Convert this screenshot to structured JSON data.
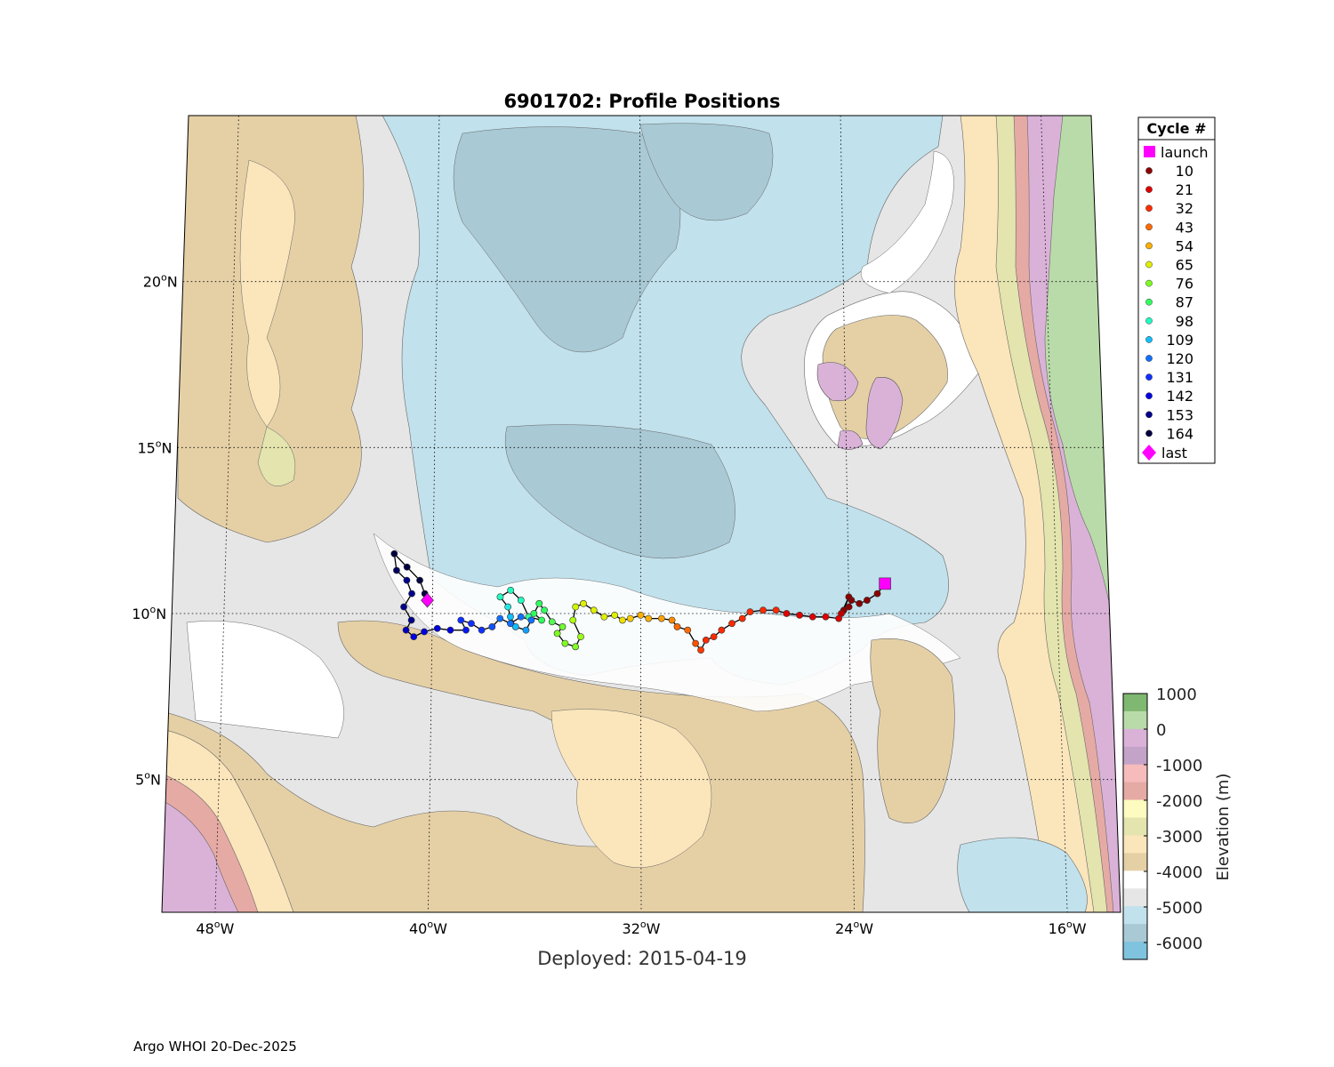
{
  "title": "6901702: Profile Positions",
  "deployed_label": "Deployed: 2015-04-19",
  "footer": "Argo WHOI 20-Dec-2025",
  "map": {
    "lon_range": [
      -50,
      -14
    ],
    "lat_range": [
      1,
      25
    ],
    "lon_ticks": [
      {
        "value": -48,
        "label": "48",
        "hem": "W"
      },
      {
        "value": -40,
        "label": "40",
        "hem": "W"
      },
      {
        "value": -32,
        "label": "32",
        "hem": "W"
      },
      {
        "value": -24,
        "label": "24",
        "hem": "W"
      },
      {
        "value": -16,
        "label": "16",
        "hem": "W"
      }
    ],
    "lat_ticks": [
      {
        "value": 20,
        "label": "20",
        "hem": "N"
      },
      {
        "value": 15,
        "label": "15",
        "hem": "N"
      },
      {
        "value": 10,
        "label": "10",
        "hem": "N"
      },
      {
        "value": 5,
        "label": "5",
        "hem": "N"
      }
    ],
    "grid": "dotted"
  },
  "legend": {
    "header": "Cycle #",
    "placement": "right-top",
    "launch_label": "launch",
    "last_label": "last",
    "launch_color": "#ff00ff",
    "cycles": [
      {
        "label": "10",
        "color": "#8b0000"
      },
      {
        "label": "21",
        "color": "#e00000"
      },
      {
        "label": "32",
        "color": "#ff2a00"
      },
      {
        "label": "43",
        "color": "#ff6a00"
      },
      {
        "label": "54",
        "color": "#ffb000"
      },
      {
        "label": "65",
        "color": "#e0f000"
      },
      {
        "label": "76",
        "color": "#7dff20"
      },
      {
        "label": "87",
        "color": "#30ff60"
      },
      {
        "label": "98",
        "color": "#20ffc0"
      },
      {
        "label": "109",
        "color": "#10c0ff"
      },
      {
        "label": "120",
        "color": "#1070ff"
      },
      {
        "label": "131",
        "color": "#1030ff"
      },
      {
        "label": "142",
        "color": "#0000e0"
      },
      {
        "label": "153",
        "color": "#00008b"
      },
      {
        "label": "164",
        "color": "#000040"
      }
    ]
  },
  "colorbar": {
    "label": "Elevation (m)",
    "ticks": [
      "1000",
      "0",
      "-1000",
      "-2000",
      "-3000",
      "-4000",
      "-5000",
      "-6000"
    ],
    "bands": [
      "#7fb871",
      "#b9dba9",
      "#dab2d8",
      "#c3a3c8",
      "#f6bcbc",
      "#e6aaa4",
      "#fdfbbf",
      "#e3e4ae",
      "#fbe5bb",
      "#e5d0a6",
      "#ffffff",
      "#e6e6e6",
      "#c1e1ec",
      "#a9c9d4",
      "#7fc3de"
    ]
  },
  "chart_data": {
    "type": "scatter",
    "title": "6901702: Profile Positions",
    "xlabel": "",
    "ylabel": "",
    "xlim": [
      -50,
      -14
    ],
    "ylim": [
      1,
      25
    ],
    "launch": {
      "lon": -22.6,
      "lat": 10.9
    },
    "last": {
      "lon": -40.2,
      "lat": 10.4
    },
    "track": [
      {
        "lon": -22.6,
        "lat": 10.9,
        "color": "#8b0000"
      },
      {
        "lon": -22.9,
        "lat": 10.6,
        "color": "#8b0000"
      },
      {
        "lon": -23.3,
        "lat": 10.4,
        "color": "#8b0000"
      },
      {
        "lon": -23.6,
        "lat": 10.3,
        "color": "#8b0000"
      },
      {
        "lon": -23.9,
        "lat": 10.4,
        "color": "#8b0000"
      },
      {
        "lon": -24.0,
        "lat": 10.2,
        "color": "#8b0000"
      },
      {
        "lon": -24.2,
        "lat": 10.1,
        "color": "#8b0000"
      },
      {
        "lon": -24.0,
        "lat": 10.5,
        "color": "#8b0000"
      },
      {
        "lon": -24.3,
        "lat": 10.0,
        "color": "#c00000"
      },
      {
        "lon": -24.4,
        "lat": 9.85,
        "color": "#e00000"
      },
      {
        "lon": -24.9,
        "lat": 9.9,
        "color": "#e00000"
      },
      {
        "lon": -25.4,
        "lat": 9.9,
        "color": "#e00000"
      },
      {
        "lon": -25.9,
        "lat": 9.95,
        "color": "#e00000"
      },
      {
        "lon": -26.4,
        "lat": 10.0,
        "color": "#e00000"
      },
      {
        "lon": -26.8,
        "lat": 10.1,
        "color": "#ff2a00"
      },
      {
        "lon": -27.3,
        "lat": 10.1,
        "color": "#ff2a00"
      },
      {
        "lon": -27.8,
        "lat": 10.05,
        "color": "#ff2a00"
      },
      {
        "lon": -28.1,
        "lat": 9.85,
        "color": "#ff2a00"
      },
      {
        "lon": -28.5,
        "lat": 9.7,
        "color": "#ff2a00"
      },
      {
        "lon": -28.9,
        "lat": 9.5,
        "color": "#ff2a00"
      },
      {
        "lon": -29.2,
        "lat": 9.3,
        "color": "#ff2a00"
      },
      {
        "lon": -29.5,
        "lat": 9.2,
        "color": "#ff2a00"
      },
      {
        "lon": -29.7,
        "lat": 8.9,
        "color": "#ff3a00"
      },
      {
        "lon": -29.9,
        "lat": 9.1,
        "color": "#ff5000"
      },
      {
        "lon": -30.2,
        "lat": 9.5,
        "color": "#ff6a00"
      },
      {
        "lon": -30.6,
        "lat": 9.6,
        "color": "#ff6a00"
      },
      {
        "lon": -30.8,
        "lat": 9.8,
        "color": "#ff8a00"
      },
      {
        "lon": -31.2,
        "lat": 9.85,
        "color": "#ffa000"
      },
      {
        "lon": -31.7,
        "lat": 9.85,
        "color": "#ffb000"
      },
      {
        "lon": -32.0,
        "lat": 9.95,
        "color": "#ffb000"
      },
      {
        "lon": -32.4,
        "lat": 9.85,
        "color": "#ffc800"
      },
      {
        "lon": -32.7,
        "lat": 9.8,
        "color": "#f0e000"
      },
      {
        "lon": -33.0,
        "lat": 9.95,
        "color": "#e0f000"
      },
      {
        "lon": -33.4,
        "lat": 9.9,
        "color": "#e0f000"
      },
      {
        "lon": -33.8,
        "lat": 10.1,
        "color": "#e0f000"
      },
      {
        "lon": -34.2,
        "lat": 10.3,
        "color": "#e0f000"
      },
      {
        "lon": -34.5,
        "lat": 10.2,
        "color": "#d0f800"
      },
      {
        "lon": -34.6,
        "lat": 9.8,
        "color": "#b0ff10"
      },
      {
        "lon": -34.3,
        "lat": 9.3,
        "color": "#9bff18"
      },
      {
        "lon": -34.5,
        "lat": 9.0,
        "color": "#7dff20"
      },
      {
        "lon": -34.9,
        "lat": 9.1,
        "color": "#7dff20"
      },
      {
        "lon": -35.2,
        "lat": 9.4,
        "color": "#7dff20"
      },
      {
        "lon": -35.0,
        "lat": 9.6,
        "color": "#70ff30"
      },
      {
        "lon": -35.4,
        "lat": 9.75,
        "color": "#50ff50"
      },
      {
        "lon": -35.7,
        "lat": 10.1,
        "color": "#30ff60"
      },
      {
        "lon": -35.9,
        "lat": 10.3,
        "color": "#30ff60"
      },
      {
        "lon": -36.1,
        "lat": 10.0,
        "color": "#30ff60"
      },
      {
        "lon": -35.8,
        "lat": 9.8,
        "color": "#30ff60"
      },
      {
        "lon": -36.3,
        "lat": 9.9,
        "color": "#30ffa0"
      },
      {
        "lon": -36.6,
        "lat": 10.4,
        "color": "#20ffc0"
      },
      {
        "lon": -37.0,
        "lat": 10.7,
        "color": "#20ffc0"
      },
      {
        "lon": -37.4,
        "lat": 10.5,
        "color": "#20ffc0"
      },
      {
        "lon": -37.1,
        "lat": 10.2,
        "color": "#20e8e0"
      },
      {
        "lon": -37.0,
        "lat": 9.9,
        "color": "#10c0ff"
      },
      {
        "lon": -36.8,
        "lat": 9.6,
        "color": "#10c0ff"
      },
      {
        "lon": -36.4,
        "lat": 9.5,
        "color": "#10a0ff"
      },
      {
        "lon": -36.2,
        "lat": 9.8,
        "color": "#1070ff"
      },
      {
        "lon": -36.6,
        "lat": 9.9,
        "color": "#1070ff"
      },
      {
        "lon": -37.0,
        "lat": 9.7,
        "color": "#1070ff"
      },
      {
        "lon": -37.4,
        "lat": 9.85,
        "color": "#1070ff"
      },
      {
        "lon": -37.7,
        "lat": 9.6,
        "color": "#1050ff"
      },
      {
        "lon": -38.1,
        "lat": 9.5,
        "color": "#1030ff"
      },
      {
        "lon": -38.5,
        "lat": 9.7,
        "color": "#1030ff"
      },
      {
        "lon": -38.9,
        "lat": 9.8,
        "color": "#1030ff"
      },
      {
        "lon": -38.7,
        "lat": 9.5,
        "color": "#0818f0"
      },
      {
        "lon": -39.3,
        "lat": 9.5,
        "color": "#0000e0"
      },
      {
        "lon": -39.8,
        "lat": 9.55,
        "color": "#0000e0"
      },
      {
        "lon": -40.3,
        "lat": 9.45,
        "color": "#0000e0"
      },
      {
        "lon": -40.7,
        "lat": 9.3,
        "color": "#0000e0"
      },
      {
        "lon": -41.0,
        "lat": 9.5,
        "color": "#0000c0"
      },
      {
        "lon": -40.8,
        "lat": 9.8,
        "color": "#00008b"
      },
      {
        "lon": -41.1,
        "lat": 10.2,
        "color": "#00008b"
      },
      {
        "lon": -40.8,
        "lat": 10.6,
        "color": "#00008b"
      },
      {
        "lon": -41.0,
        "lat": 11.0,
        "color": "#00008b"
      },
      {
        "lon": -41.4,
        "lat": 11.3,
        "color": "#000060"
      },
      {
        "lon": -41.5,
        "lat": 11.8,
        "color": "#000040"
      },
      {
        "lon": -41.0,
        "lat": 11.4,
        "color": "#000040"
      },
      {
        "lon": -40.5,
        "lat": 11.0,
        "color": "#000040"
      },
      {
        "lon": -40.3,
        "lat": 10.6,
        "color": "#000040"
      },
      {
        "lon": -40.2,
        "lat": 10.4,
        "color": "#000040"
      }
    ]
  }
}
